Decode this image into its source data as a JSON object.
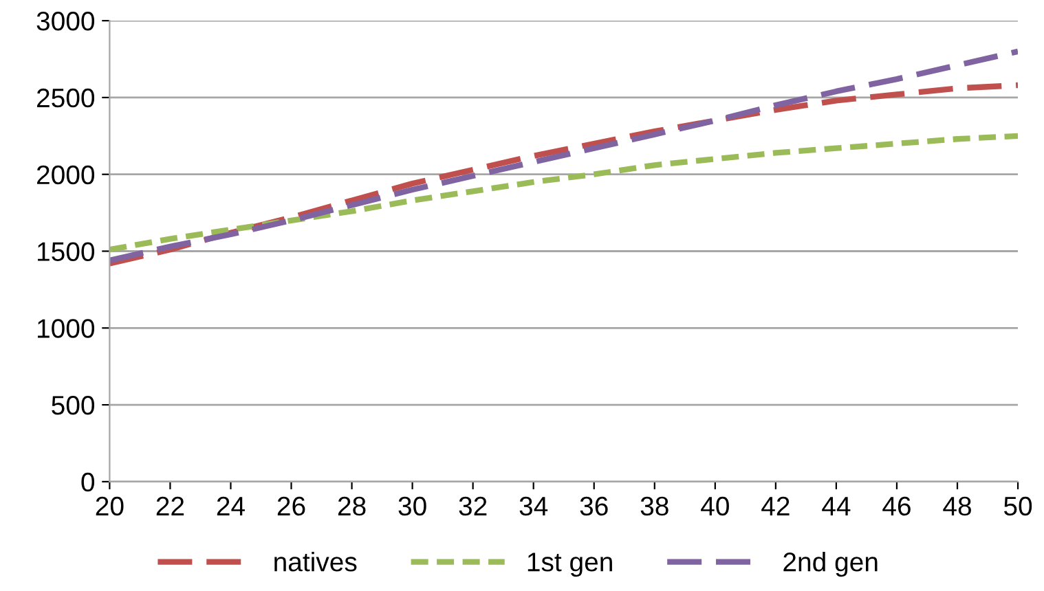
{
  "chart_data": {
    "type": "line",
    "x": [
      20,
      22,
      24,
      26,
      28,
      30,
      32,
      34,
      36,
      38,
      40,
      42,
      44,
      46,
      48,
      50
    ],
    "series": [
      {
        "name": "natives",
        "color": "#c0504d",
        "line_style": "dashed",
        "values": [
          1420,
          1510,
          1620,
          1720,
          1830,
          1940,
          2030,
          2120,
          2200,
          2280,
          2350,
          2420,
          2480,
          2520,
          2560,
          2580
        ]
      },
      {
        "name": "1st gen",
        "color": "#9bbb59",
        "line_style": "dotted",
        "values": [
          1510,
          1580,
          1640,
          1700,
          1760,
          1830,
          1890,
          1950,
          2000,
          2060,
          2100,
          2140,
          2170,
          2200,
          2230,
          2250
        ]
      },
      {
        "name": "2nd gen",
        "color": "#8064a2",
        "line_style": "dashed",
        "values": [
          1440,
          1530,
          1610,
          1700,
          1800,
          1900,
          1990,
          2080,
          2170,
          2260,
          2350,
          2450,
          2540,
          2620,
          2710,
          2800
        ]
      }
    ],
    "xlim": [
      20,
      50
    ],
    "xticks": [
      20,
      22,
      24,
      26,
      28,
      30,
      32,
      34,
      36,
      38,
      40,
      42,
      44,
      46,
      48,
      50
    ],
    "ylim": [
      0,
      3000
    ],
    "yticks": [
      0,
      500,
      1000,
      1500,
      2000,
      2500,
      3000
    ],
    "grid": "y",
    "legend": "bottom",
    "marker": "none"
  }
}
